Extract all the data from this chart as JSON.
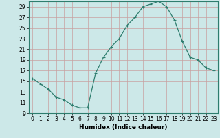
{
  "title": "",
  "xlabel": "Humidex (Indice chaleur)",
  "x_values": [
    0,
    1,
    2,
    3,
    4,
    5,
    6,
    7,
    8,
    9,
    10,
    11,
    12,
    13,
    14,
    15,
    16,
    17,
    18,
    19,
    20,
    21,
    22,
    23
  ],
  "y_values": [
    15.5,
    14.5,
    13.5,
    12.0,
    11.5,
    10.5,
    10.0,
    10.0,
    16.5,
    19.5,
    21.5,
    23.0,
    25.5,
    27.0,
    29.0,
    29.5,
    30.0,
    29.0,
    26.5,
    22.5,
    19.5,
    19.0,
    17.5,
    17.0
  ],
  "ylim": [
    9,
    30
  ],
  "xlim": [
    -0.5,
    23.5
  ],
  "yticks": [
    9,
    11,
    13,
    15,
    17,
    19,
    21,
    23,
    25,
    27,
    29
  ],
  "xticks": [
    0,
    1,
    2,
    3,
    4,
    5,
    6,
    7,
    8,
    9,
    10,
    11,
    12,
    13,
    14,
    15,
    16,
    17,
    18,
    19,
    20,
    21,
    22,
    23
  ],
  "line_color": "#2e7d6e",
  "marker": "+",
  "marker_size": 3,
  "marker_linewidth": 0.8,
  "line_width": 0.9,
  "bg_color": "#cce8e8",
  "grid_color_major": "#c8a0a0",
  "grid_color_minor": "#c8a0a0",
  "tick_fontsize": 5.5,
  "xlabel_fontsize": 6.5,
  "xlabel_fontweight": "bold"
}
